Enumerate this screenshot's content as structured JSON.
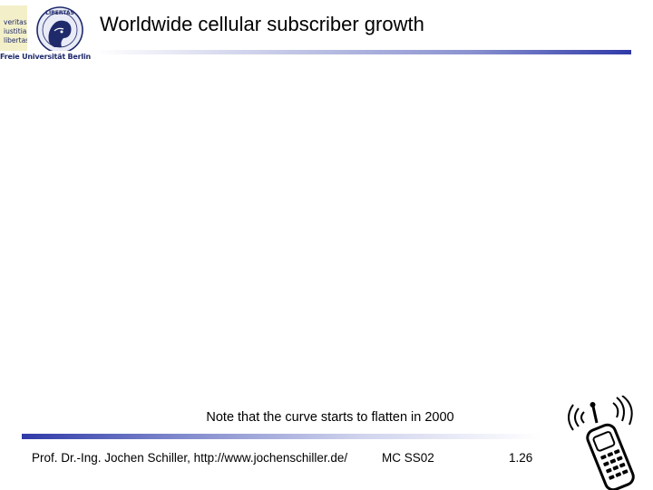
{
  "logo": {
    "lines": [
      "veritas",
      "iustitia",
      "libertas"
    ],
    "seal_text": "LIBERTAS",
    "caption": "Freie Universität Berlin"
  },
  "slide": {
    "title": "Worldwide cellular subscriber growth",
    "note": "Note that the curve starts to flatten in 2000"
  },
  "footer": {
    "author": "Prof. Dr.-Ing. Jochen Schiller, http://www.jochenschiller.de/",
    "course": "MC SS02",
    "page": "1.26"
  },
  "colors": {
    "accent": "#2f3aa8",
    "logo_bg": "#f3f0c9",
    "logo_text": "#1f2a6b"
  },
  "icons": [
    "university-seal-icon",
    "mobile-phone-icon"
  ]
}
